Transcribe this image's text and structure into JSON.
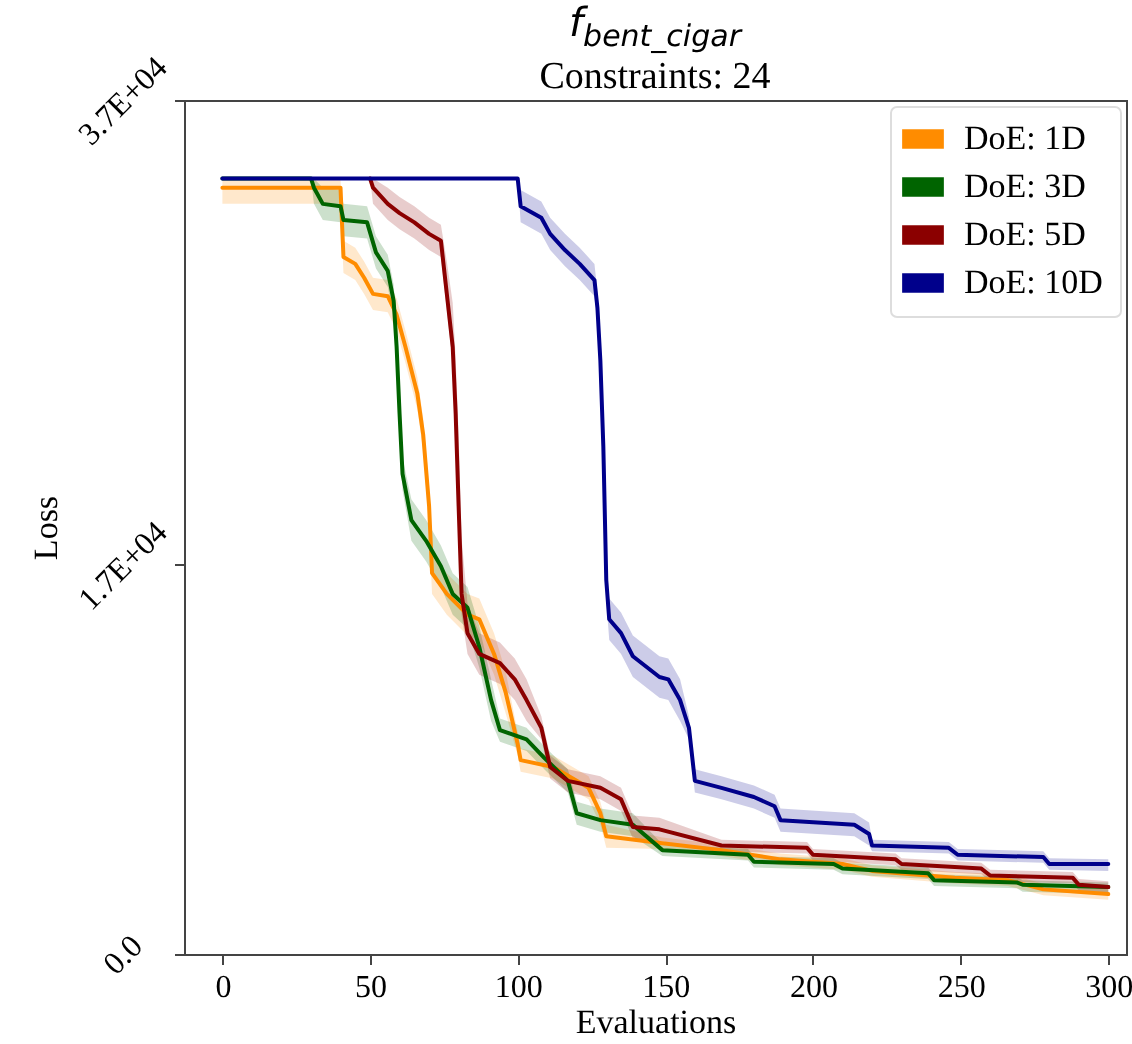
{
  "chart_data": {
    "type": "line",
    "title": "f$_{bent_cigar}$",
    "subtitle": "Constraints: 24",
    "xlabel": "Evaluations",
    "ylabel": "Loss",
    "xlim": [
      -13,
      306
    ],
    "xticks": [
      0,
      50,
      100,
      150,
      200,
      250,
      300
    ],
    "ylim": [
      0,
      37000
    ],
    "yticks": [
      {
        "value": 0,
        "label": "0.0"
      },
      {
        "value": 16860,
        "label": "1.7E+04"
      },
      {
        "value": 37000,
        "label": "3.7E+04"
      }
    ],
    "grid": false,
    "legend": "top right",
    "series": [
      {
        "name": "DoE: 1D",
        "color": "#ff8c00",
        "x": [
          0,
          30,
          40,
          41,
          45,
          48,
          51,
          56,
          59,
          62,
          66,
          68,
          70,
          71,
          76,
          83,
          87,
          92,
          96,
          100,
          101,
          112,
          124,
          128,
          130,
          149,
          169,
          189,
          210,
          220,
          248,
          266,
          278,
          300
        ],
        "values": [
          33200,
          33200,
          33200,
          30200,
          29900,
          29300,
          28600,
          28500,
          27700,
          26300,
          24300,
          22500,
          19400,
          16500,
          15600,
          14700,
          14500,
          13000,
          11300,
          9100,
          8400,
          8100,
          7200,
          6100,
          5100,
          4800,
          4500,
          4100,
          3900,
          3600,
          3300,
          3200,
          2800,
          2600
        ],
        "lower": [
          32500,
          32500,
          32500,
          29500,
          29200,
          28600,
          27900,
          27800,
          27000,
          25600,
          23600,
          21800,
          18500,
          15600,
          14700,
          13800,
          13600,
          12100,
          10400,
          8600,
          7900,
          7600,
          6700,
          5600,
          4600,
          4550,
          4250,
          3850,
          3650,
          3350,
          3050,
          2950,
          2550,
          2350
        ],
        "upper": [
          33600,
          33600,
          33600,
          30900,
          30600,
          30000,
          29300,
          29200,
          28400,
          27000,
          25000,
          23200,
          20300,
          17400,
          16500,
          15600,
          15400,
          13900,
          12200,
          9600,
          8900,
          8600,
          7700,
          6600,
          5600,
          5050,
          4750,
          4350,
          4150,
          3850,
          3550,
          3450,
          3050,
          2850
        ]
      },
      {
        "name": "DoE: 3D",
        "color": "#006400",
        "x": [
          0,
          30,
          31,
          34,
          40,
          41,
          49,
          52,
          56,
          58,
          59,
          60,
          61,
          64,
          69,
          74,
          78,
          83,
          87,
          91,
          94,
          103,
          109,
          117,
          120,
          128,
          139,
          149,
          178,
          180,
          207,
          210,
          239,
          241,
          269,
          271,
          300
        ],
        "values": [
          33600,
          33600,
          33200,
          32500,
          32400,
          31800,
          31700,
          30400,
          29600,
          28300,
          26300,
          23400,
          20800,
          18800,
          17900,
          16800,
          15600,
          15000,
          13300,
          11000,
          9700,
          9300,
          8500,
          7500,
          6100,
          5800,
          5600,
          4500,
          4300,
          4000,
          3900,
          3700,
          3500,
          3200,
          3100,
          3000,
          2900
        ],
        "lower": [
          33600,
          33600,
          32500,
          31800,
          31700,
          31100,
          31000,
          29700,
          28900,
          27600,
          25600,
          22700,
          20100,
          17900,
          17000,
          15900,
          14700,
          14100,
          12400,
          10100,
          9200,
          8800,
          8000,
          7000,
          5600,
          5300,
          5100,
          4250,
          4050,
          3750,
          3650,
          3450,
          3250,
          2950,
          2850,
          2700,
          2600
        ],
        "upper": [
          33600,
          33600,
          33600,
          33200,
          33100,
          32500,
          32400,
          31100,
          30300,
          29000,
          27000,
          24100,
          21500,
          19700,
          18800,
          17700,
          16500,
          15900,
          14200,
          11900,
          10200,
          9800,
          9000,
          8000,
          6600,
          6300,
          6100,
          4750,
          4550,
          4250,
          4150,
          3950,
          3750,
          3450,
          3350,
          3200,
          3100
        ]
      },
      {
        "name": "DoE: 5D",
        "color": "#8b0000",
        "x": [
          50,
          51,
          56,
          60,
          65,
          70,
          74,
          76,
          78,
          79,
          80,
          81,
          83,
          87,
          94,
          99,
          103,
          108,
          111,
          117,
          128,
          135,
          139,
          148,
          169,
          198,
          200,
          228,
          230,
          257,
          260,
          288,
          290,
          300
        ],
        "values": [
          33600,
          33200,
          32500,
          32100,
          31700,
          31200,
          30900,
          28600,
          26300,
          23400,
          19400,
          15600,
          13900,
          13000,
          12600,
          11900,
          11000,
          9800,
          8100,
          7500,
          7200,
          6700,
          5500,
          5400,
          4700,
          4600,
          4300,
          4100,
          3900,
          3700,
          3400,
          3300,
          3000,
          2900
        ],
        "lower": [
          33600,
          32500,
          31800,
          31400,
          31000,
          30500,
          30200,
          27900,
          25600,
          22700,
          18500,
          14700,
          13000,
          12100,
          11700,
          11000,
          10100,
          9300,
          7600,
          7000,
          6700,
          6200,
          5000,
          4900,
          4450,
          4350,
          4050,
          3850,
          3650,
          3450,
          3150,
          3050,
          2750,
          2650
        ],
        "upper": [
          33600,
          33600,
          33200,
          32800,
          32400,
          31900,
          31600,
          30000,
          28200,
          25800,
          22500,
          18000,
          15200,
          13900,
          13500,
          12800,
          11900,
          10300,
          8600,
          8000,
          7700,
          7200,
          6000,
          5900,
          4950,
          4850,
          4550,
          4350,
          4150,
          3950,
          3650,
          3550,
          3250,
          3150
        ]
      },
      {
        "name": "DoE: 10D",
        "color": "#00008b",
        "x": [
          0,
          100,
          101,
          108,
          111,
          116,
          121,
          126,
          127,
          128,
          129,
          130,
          131,
          135,
          139,
          148,
          151,
          155,
          158,
          160,
          169,
          180,
          187,
          189,
          214,
          219,
          220,
          246,
          249,
          278,
          280,
          300
        ],
        "values": [
          33600,
          33600,
          32400,
          31900,
          31200,
          30500,
          29900,
          29200,
          28000,
          25700,
          22000,
          16200,
          14500,
          13900,
          12900,
          12000,
          11900,
          11000,
          9800,
          7500,
          7200,
          6800,
          6400,
          5800,
          5600,
          5200,
          4700,
          4600,
          4300,
          4200,
          3900,
          3900
        ],
        "lower": [
          33600,
          33600,
          31700,
          31200,
          30500,
          29800,
          29200,
          28500,
          27300,
          25000,
          21300,
          15300,
          13600,
          13000,
          12000,
          11100,
          11000,
          10100,
          9300,
          7000,
          6700,
          6300,
          5900,
          5300,
          5100,
          4700,
          4450,
          4350,
          4050,
          3950,
          3650,
          3600
        ],
        "upper": [
          33600,
          33600,
          33100,
          32600,
          31900,
          31200,
          30600,
          29900,
          28700,
          26400,
          22700,
          17100,
          15400,
          14800,
          13800,
          12900,
          12800,
          11900,
          10300,
          8000,
          7700,
          7300,
          6900,
          6300,
          6100,
          5700,
          4950,
          4850,
          4550,
          4450,
          4150,
          4100
        ]
      }
    ]
  }
}
